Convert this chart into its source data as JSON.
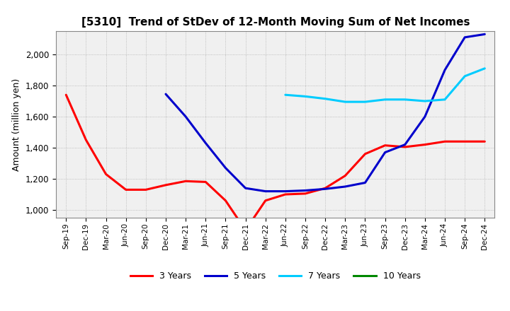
{
  "title": "[5310]  Trend of StDev of 12-Month Moving Sum of Net Incomes",
  "ylabel": "Amount (million yen)",
  "background_color": "#ffffff",
  "plot_bg_color": "#f0f0f0",
  "grid_color": "#aaaaaa",
  "ylim": [
    950,
    2150
  ],
  "yticks": [
    1000,
    1200,
    1400,
    1600,
    1800,
    2000
  ],
  "x_labels": [
    "Sep-19",
    "Dec-19",
    "Mar-20",
    "Jun-20",
    "Sep-20",
    "Dec-20",
    "Mar-21",
    "Jun-21",
    "Sep-21",
    "Dec-21",
    "Mar-22",
    "Jun-22",
    "Sep-22",
    "Dec-22",
    "Mar-23",
    "Jun-23",
    "Sep-23",
    "Dec-23",
    "Mar-24",
    "Jun-24",
    "Sep-24",
    "Dec-24"
  ],
  "series": [
    {
      "label": "3 Years",
      "color": "#ff0000",
      "data_x": [
        0,
        1,
        2,
        3,
        4,
        5,
        6,
        7,
        8,
        9,
        10,
        11,
        12,
        13,
        14,
        15,
        16,
        17,
        18,
        19,
        20,
        21
      ],
      "data_y": [
        1740,
        1450,
        1230,
        1130,
        1130,
        1160,
        1185,
        1180,
        1060,
        870,
        1060,
        1100,
        1105,
        1140,
        1220,
        1360,
        1415,
        1405,
        1420,
        1440,
        1440,
        1440
      ]
    },
    {
      "label": "5 Years",
      "color": "#0000cc",
      "data_x": [
        5,
        6,
        7,
        8,
        9,
        10,
        11,
        12,
        13,
        14,
        15,
        16,
        17,
        18,
        19,
        20,
        21
      ],
      "data_y": [
        1745,
        1600,
        1430,
        1270,
        1140,
        1120,
        1120,
        1125,
        1135,
        1150,
        1175,
        1370,
        1420,
        1600,
        1900,
        2110,
        2130
      ]
    },
    {
      "label": "7 Years",
      "color": "#00ccff",
      "data_x": [
        11,
        12,
        13,
        14,
        15,
        16,
        17,
        18,
        19,
        20,
        21
      ],
      "data_y": [
        1740,
        1730,
        1715,
        1695,
        1695,
        1710,
        1710,
        1700,
        1710,
        1860,
        1910
      ]
    },
    {
      "label": "10 Years",
      "color": "#008800",
      "data_x": [],
      "data_y": []
    }
  ],
  "legend_labels": [
    "3 Years",
    "5 Years",
    "7 Years",
    "10 Years"
  ],
  "legend_colors": [
    "#ff0000",
    "#0000cc",
    "#00ccff",
    "#008800"
  ]
}
